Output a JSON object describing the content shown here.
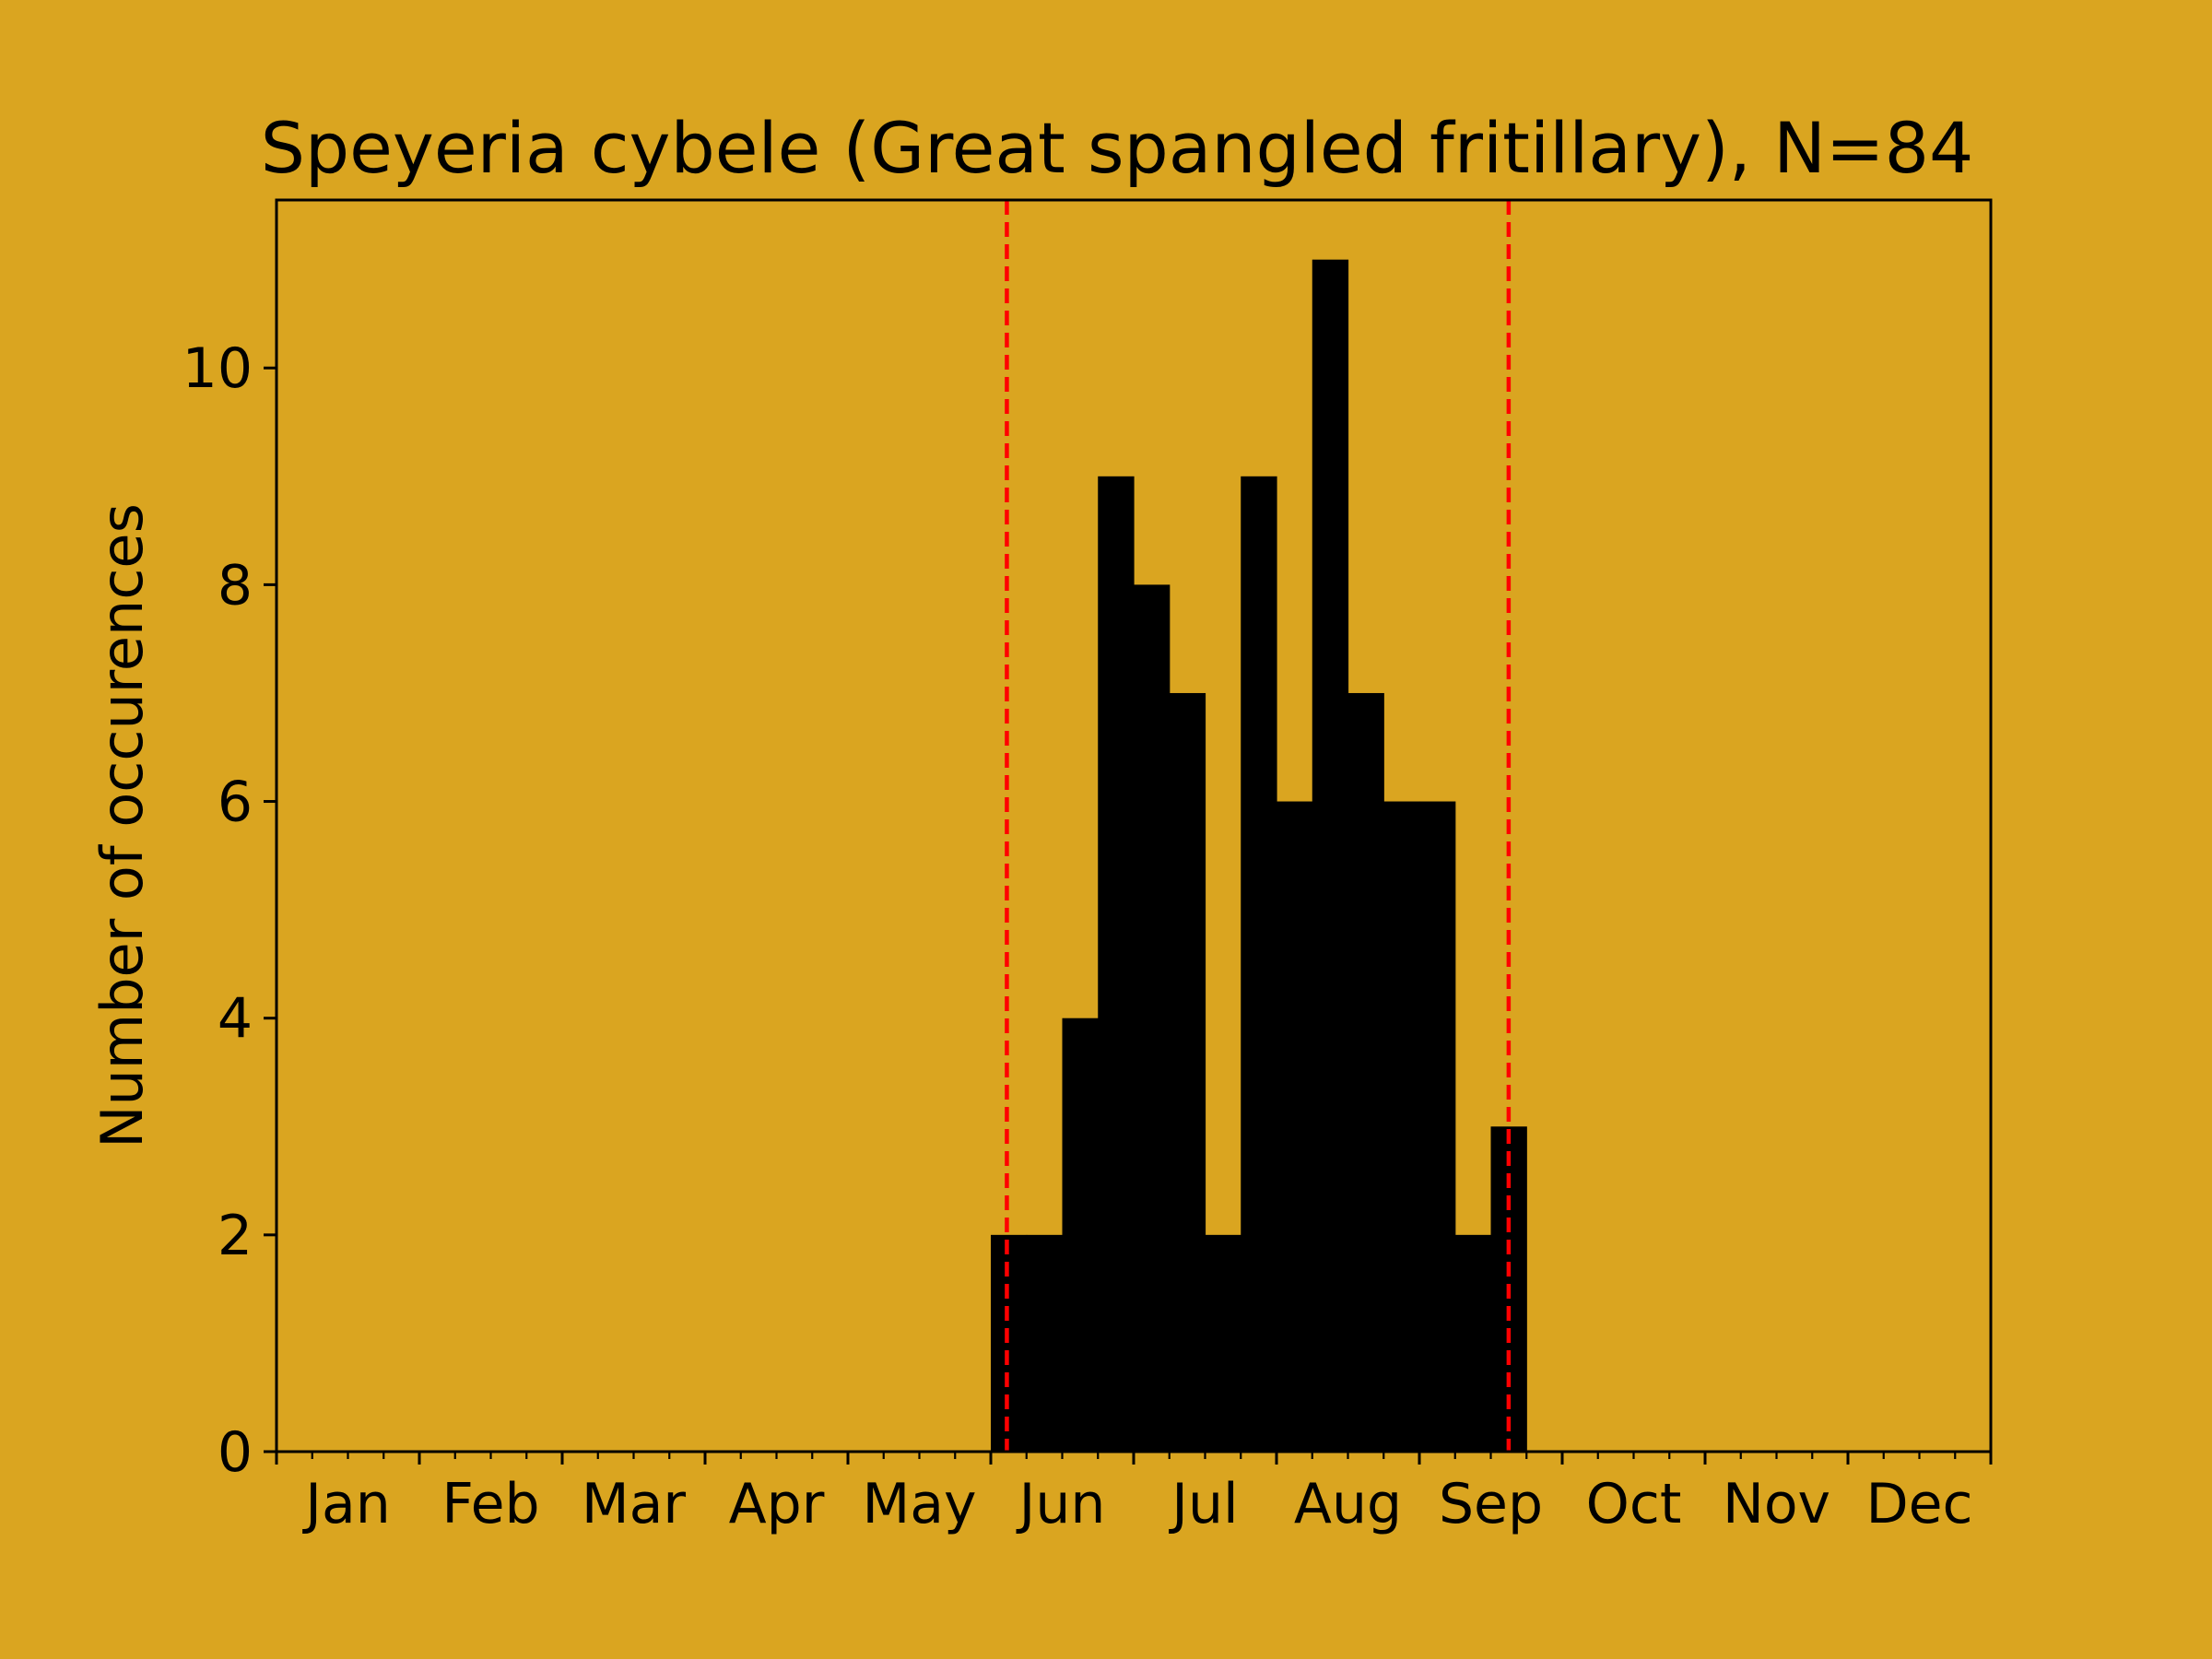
{
  "chart_data": {
    "type": "bar",
    "title": "Speyeria cybele (Great spangled fritillary), N=84",
    "xlabel": "",
    "ylabel": "Number of occurences",
    "ylim": [
      0,
      11.55
    ],
    "yticks": [
      0,
      2,
      4,
      6,
      8,
      10
    ],
    "xlim": [
      0,
      48
    ],
    "month_labels": [
      "Jan",
      "Feb",
      "Mar",
      "Apr",
      "May",
      "Jun",
      "Jul",
      "Aug",
      "Sep",
      "Oct",
      "Nov",
      "Dec"
    ],
    "bin_start": 20,
    "bin_width": 1,
    "values": [
      2,
      2,
      4,
      9,
      8,
      7,
      2,
      9,
      6,
      11,
      7,
      6,
      6,
      2,
      3
    ],
    "vlines": [
      20.45,
      34.5
    ],
    "vline_color": "#ff0000",
    "bar_color": "#000000",
    "background": "#DAA520",
    "grid": false
  }
}
